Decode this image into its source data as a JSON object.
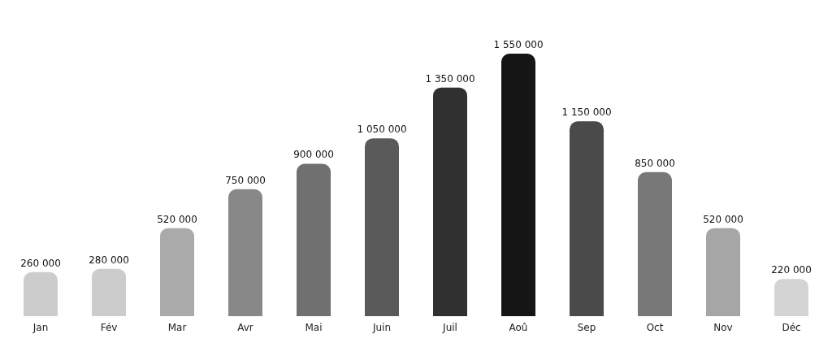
{
  "chart_data": {
    "type": "bar",
    "categories": [
      "Jan",
      "Fév",
      "Mar",
      "Avr",
      "Mai",
      "Juin",
      "Juil",
      "Aoû",
      "Sep",
      "Oct",
      "Nov",
      "Déc"
    ],
    "values": [
      260000,
      280000,
      520000,
      750000,
      900000,
      1050000,
      1350000,
      1550000,
      1150000,
      850000,
      520000,
      220000
    ],
    "colors": [
      "#cccccc",
      "#cccccc",
      "#aaaaaa",
      "#888888",
      "#707070",
      "#5a5a5a",
      "#303030",
      "#151515",
      "#4a4a4a",
      "#787878",
      "#a6a6a6",
      "#d4d4d4"
    ],
    "value_labels": [
      "260 000",
      "280 000",
      "520 000",
      "750 000",
      "900 000",
      "1 050 000",
      "1 350 000",
      "1 550 000",
      "1 150 000",
      "850 000",
      "520 000",
      "220 000"
    ]
  }
}
